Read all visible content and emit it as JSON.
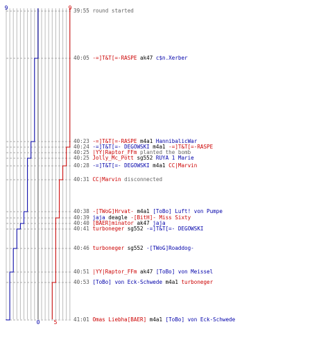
{
  "colors": {
    "red_team": "#cc0000",
    "blue_team": "#0000aa",
    "time": "#555555",
    "info": "#666666",
    "grid": "#bbbbbb",
    "center_axis": "#888888"
  },
  "scores": {
    "blue_start": "9",
    "red_start": "9",
    "blue_end": "0",
    "red_end": "5"
  },
  "events": [
    {
      "time": "39:55",
      "parts": [
        {
          "t": "round started",
          "c": "gray"
        }
      ]
    },
    {
      "time": "40:05",
      "parts": [
        {
          "t": "-=]T&T[=-RASPE",
          "c": "red"
        },
        {
          "t": " ak47 ",
          "c": "black"
        },
        {
          "t": "c$n.Xerber",
          "c": "blue"
        }
      ]
    },
    {
      "time": "40:23",
      "parts": [
        {
          "t": "-=]T&T[=-RASPE",
          "c": "red"
        },
        {
          "t": " m4a1 ",
          "c": "black"
        },
        {
          "t": "HannibalicWar",
          "c": "blue"
        }
      ]
    },
    {
      "time": "40:24",
      "parts": [
        {
          "t": "-=]T&T[=- DEGOWSKI",
          "c": "blue"
        },
        {
          "t": " m4a1 ",
          "c": "black"
        },
        {
          "t": "-=]T&T[=-RASPE",
          "c": "red"
        }
      ]
    },
    {
      "time": "40:25",
      "parts": [
        {
          "t": "|YY|Raptor_FFm",
          "c": "red"
        },
        {
          "t": " planted the bomb",
          "c": "gray"
        }
      ]
    },
    {
      "time": "40:25",
      "parts": [
        {
          "t": "Jolly_Mc_Pott",
          "c": "red"
        },
        {
          "t": " sg552 ",
          "c": "black"
        },
        {
          "t": "RUYA 1 Marie",
          "c": "blue"
        }
      ]
    },
    {
      "time": "40:28",
      "parts": [
        {
          "t": "-=]T&T[=- DEGOWSKI",
          "c": "blue"
        },
        {
          "t": " m4a1 ",
          "c": "black"
        },
        {
          "t": "CC|Marvin",
          "c": "red"
        }
      ]
    },
    {
      "time": "40:31",
      "parts": [
        {
          "t": "CC|Marvin",
          "c": "red"
        },
        {
          "t": " disconnected",
          "c": "gray"
        }
      ]
    },
    {
      "time": "40:38",
      "parts": [
        {
          "t": "-[TWoG]Hrvat-",
          "c": "red"
        },
        {
          "t": " m4a1 ",
          "c": "black"
        },
        {
          "t": "[ToBo] Luft! von Pumpe",
          "c": "blue"
        }
      ]
    },
    {
      "time": "40:39",
      "parts": [
        {
          "t": "jaja",
          "c": "blue"
        },
        {
          "t": " deagle ",
          "c": "black"
        },
        {
          "t": "-[BitH]- Miss Sixty",
          "c": "red"
        }
      ]
    },
    {
      "time": "40:40",
      "parts": [
        {
          "t": "[BAER]minator",
          "c": "red"
        },
        {
          "t": " ak47 ",
          "c": "black"
        },
        {
          "t": "jaja",
          "c": "blue"
        }
      ]
    },
    {
      "time": "40:41",
      "parts": [
        {
          "t": "turboneger",
          "c": "red"
        },
        {
          "t": " sg552 ",
          "c": "black"
        },
        {
          "t": "-=]T&T[=- DEGOWSKI",
          "c": "blue"
        }
      ]
    },
    {
      "time": "40:46",
      "parts": [
        {
          "t": "turboneger",
          "c": "red"
        },
        {
          "t": " sg552 ",
          "c": "black"
        },
        {
          "t": "-[TWoG]Roaddog-",
          "c": "blue"
        }
      ]
    },
    {
      "time": "40:51",
      "parts": [
        {
          "t": "|YY|Raptor_FFm",
          "c": "red"
        },
        {
          "t": " ak47 ",
          "c": "black"
        },
        {
          "t": "[ToBo] von Meissel",
          "c": "blue"
        }
      ]
    },
    {
      "time": "40:53",
      "parts": [
        {
          "t": "[ToBo] von Eck-Schwede",
          "c": "blue"
        },
        {
          "t": " m4a1 ",
          "c": "black"
        },
        {
          "t": "turboneger",
          "c": "red"
        }
      ]
    },
    {
      "time": "41:01",
      "parts": [
        {
          "t": "Omas Liebha[BAER]",
          "c": "red"
        },
        {
          "t": " m4a1 ",
          "c": "black"
        },
        {
          "t": "[ToBo] von Eck-Schwede",
          "c": "blue"
        }
      ]
    }
  ]
}
